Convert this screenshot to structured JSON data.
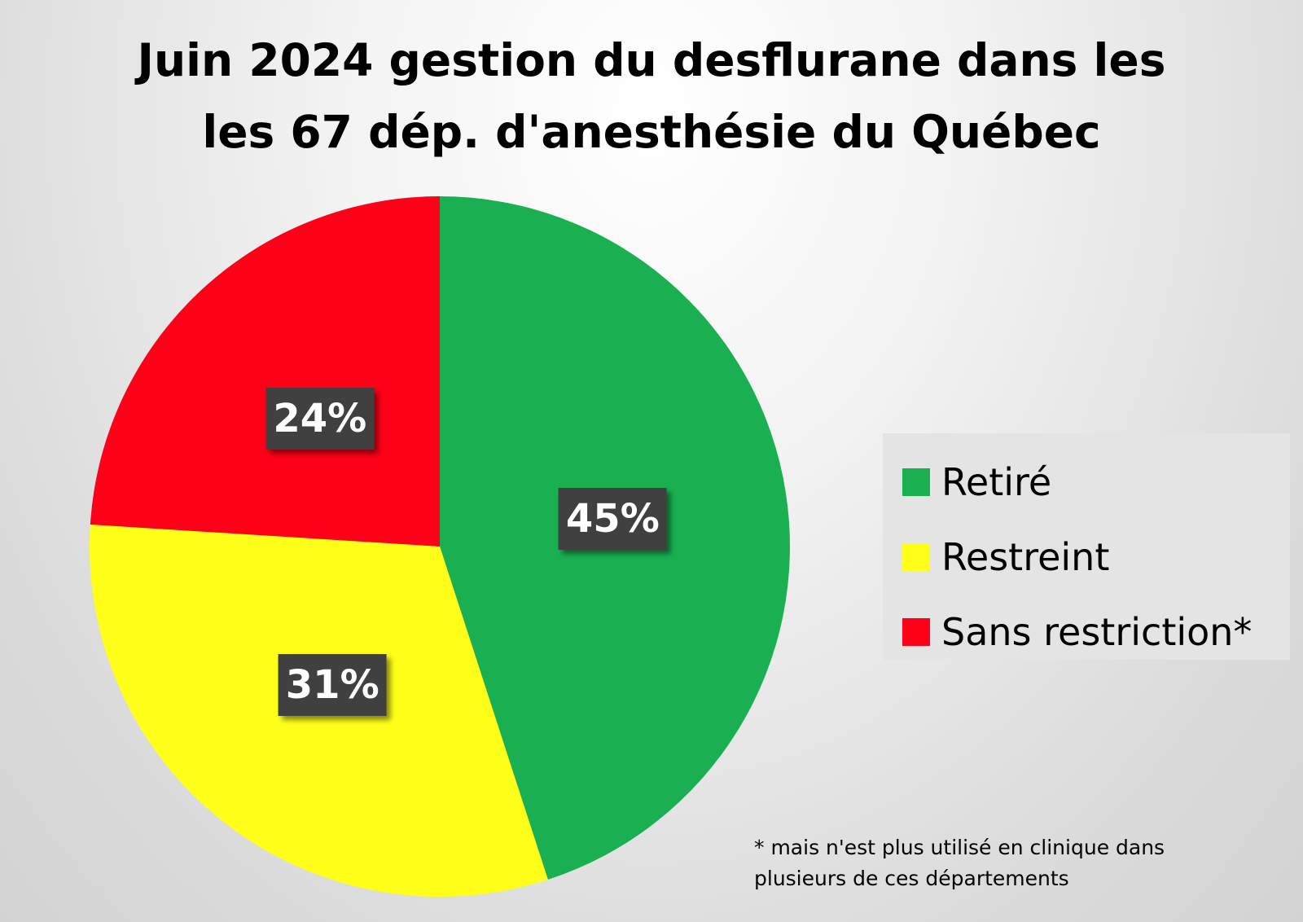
{
  "chart_data": {
    "type": "pie",
    "title_lines": [
      "Juin 2024 gestion du desflurane dans les",
      "les 67 dép. d'anesthésie du Québec"
    ],
    "slices": [
      {
        "label": "Retiré",
        "value": 45,
        "display": "45%",
        "color": "#1ab052"
      },
      {
        "label": "Restreint",
        "value": 31,
        "display": "31%",
        "color": "#ffff19"
      },
      {
        "label": "Sans restriction*",
        "value": 24,
        "display": "24%",
        "color": "#ff0019"
      }
    ],
    "start": "12 o'clock",
    "direction": "clockwise",
    "legend_position": "right",
    "footnote_lines": [
      "* mais n'est plus utilisé en clinique dans",
      "plusieurs de ces départements"
    ]
  }
}
